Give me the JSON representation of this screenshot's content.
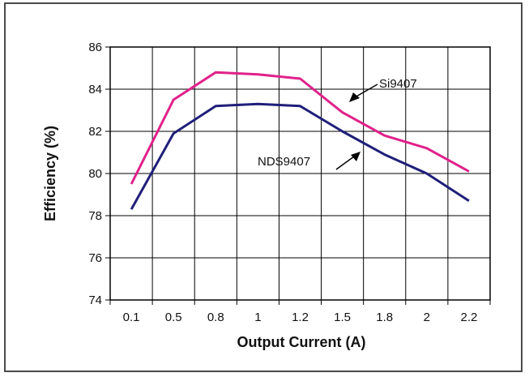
{
  "chart_data": {
    "type": "line",
    "title": "",
    "xlabel": "Output Current (A)",
    "ylabel": "Efficiency (%)",
    "categories": [
      "0.1",
      "0.5",
      "0.8",
      "1",
      "1.2",
      "1.5",
      "1.8",
      "2",
      "2.2"
    ],
    "ylim": [
      74,
      86
    ],
    "yticks": [
      "74",
      "76",
      "78",
      "80",
      "82",
      "84",
      "86"
    ],
    "grid": true,
    "series": [
      {
        "name": "Si9407",
        "color": "#e0218a",
        "values": [
          79.5,
          83.5,
          84.8,
          84.7,
          84.5,
          82.9,
          81.8,
          81.2,
          80.1
        ]
      },
      {
        "name": "NDS9407",
        "color": "#1f1f7a",
        "values": [
          78.3,
          81.9,
          83.2,
          83.3,
          83.2,
          82.0,
          80.9,
          80.0,
          78.7
        ]
      }
    ]
  }
}
